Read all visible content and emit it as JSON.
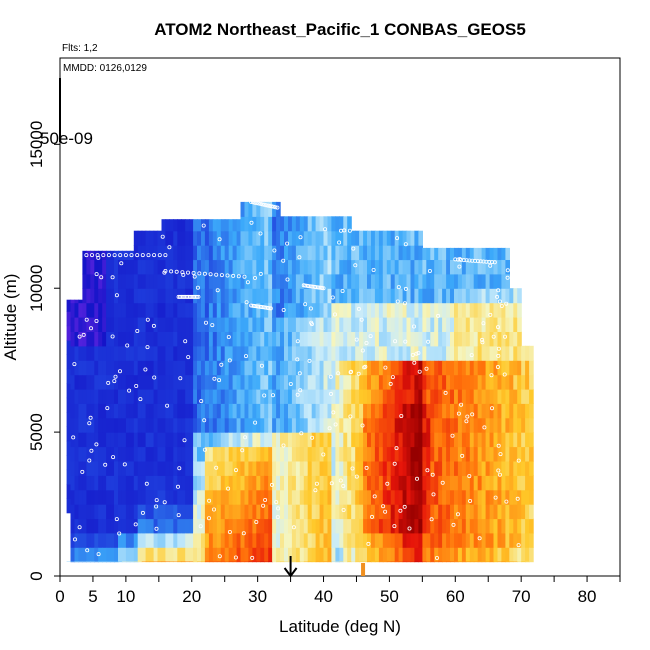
{
  "chart_data": {
    "type": "heatmap",
    "title": "ATOM2 Northeast_Pacific_1 CONBAS_GEOS5",
    "annotations": {
      "flights": "Flts: 1,2",
      "dates": "MMDD: 0126,0129",
      "legend_value": "50e-09"
    },
    "xlabel": "Latitude (deg N)",
    "ylabel": "Altitude (m)",
    "xlim": [
      0,
      85
    ],
    "ylim": [
      0,
      18000
    ],
    "x_tick_labels": [
      "0",
      "5",
      "10",
      "20",
      "30",
      "40",
      "50",
      "60",
      "70",
      "80"
    ],
    "x_ticks": [
      0,
      5,
      10,
      20,
      30,
      40,
      50,
      60,
      70,
      80
    ],
    "y_tick_labels": [
      "0",
      "5000",
      "10000",
      "15000"
    ],
    "y_ticks": [
      0,
      5000,
      10000,
      15000
    ],
    "markers": [
      {
        "kind": "arrow",
        "x": 35
      },
      {
        "kind": "bar",
        "x": 46
      }
    ],
    "colors": {
      "low": "#1010c8",
      "mid_low": "#40a8f8",
      "mid": "#f0f0c0",
      "mid_high": "#ffb020",
      "high": "#e01010",
      "max": "#a00000",
      "violet": "#8040e0",
      "flight_track": "#ffffff"
    }
  }
}
